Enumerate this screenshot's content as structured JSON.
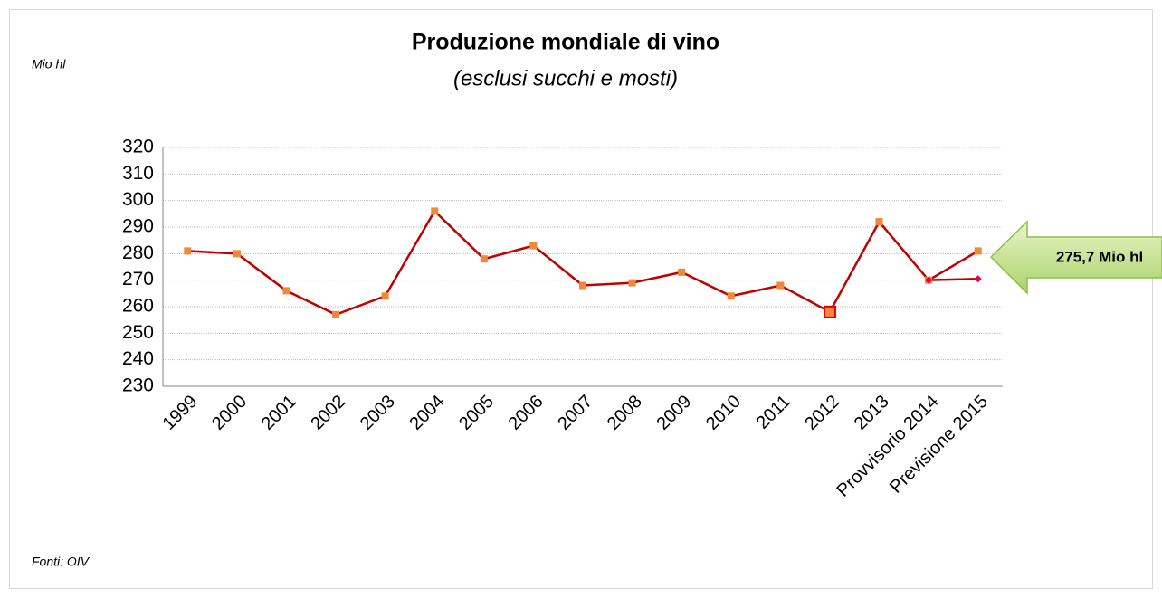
{
  "chart_data": {
    "type": "line",
    "title": "Produzione mondiale di vino",
    "subtitle": "(esclusi succhi e mosti)",
    "y_label": "Mio hl",
    "source": "Fonti: OIV",
    "annotation": "275,7 Mio hl",
    "categories": [
      "1999",
      "2000",
      "2001",
      "2002",
      "2003",
      "2004",
      "2005",
      "2006",
      "2007",
      "2008",
      "2009",
      "2010",
      "2011",
      "2012",
      "2013",
      "Provvisorio 2014",
      "Previsione 2015"
    ],
    "series": [
      {
        "color": "#c00000",
        "marker_color": "#f0883a",
        "marker": "square",
        "values": [
          281,
          280,
          266,
          257,
          264,
          296,
          278,
          283,
          268,
          269,
          273,
          264,
          268,
          258,
          292,
          270,
          281
        ]
      },
      {
        "color": "#c00000",
        "marker_color": "#e0004d",
        "marker": "diamond",
        "values": [
          null,
          null,
          null,
          null,
          null,
          null,
          null,
          null,
          null,
          null,
          null,
          null,
          null,
          null,
          null,
          270,
          270.5
        ]
      }
    ],
    "highlight_category": "2012",
    "ylim": [
      230,
      320
    ],
    "yticks": [
      230,
      240,
      250,
      260,
      270,
      280,
      290,
      300,
      310,
      320
    ],
    "grid": true
  }
}
